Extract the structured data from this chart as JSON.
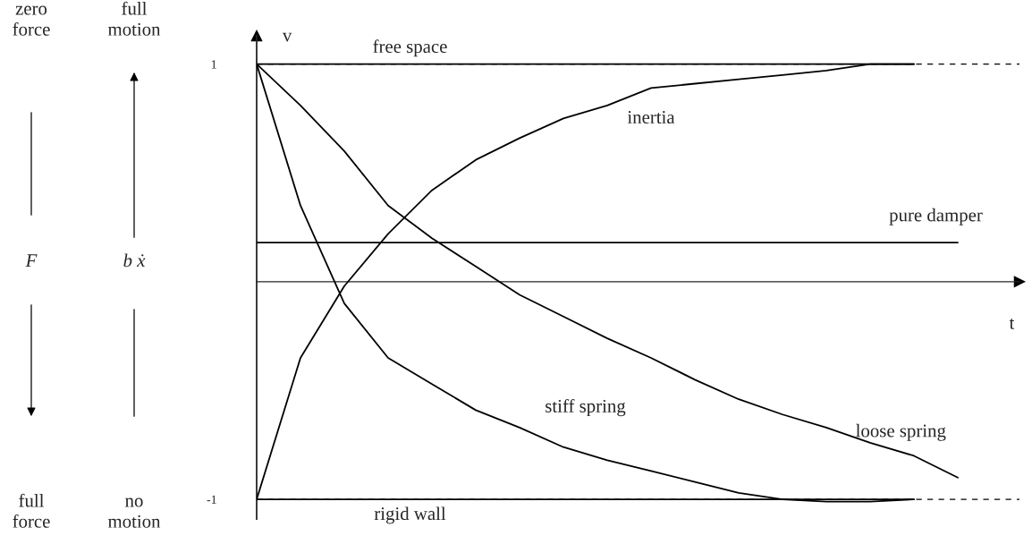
{
  "chart_data": {
    "type": "line",
    "xlabel": "t",
    "ylabel": "v",
    "categories": [
      null,
      null,
      null,
      null,
      null,
      null,
      null,
      null,
      null,
      null,
      null,
      null,
      null,
      null,
      null,
      null,
      null
    ],
    "series": [
      {
        "name": "free space",
        "color": "#000000",
        "values": [
          1,
          1,
          1,
          1,
          1,
          1,
          1,
          1,
          1,
          1,
          1,
          1,
          1,
          1,
          1,
          1,
          null
        ]
      },
      {
        "name": "rigid wall",
        "color": "#000000",
        "values": [
          -1,
          -1,
          -1,
          -1,
          -1,
          -1,
          -1,
          -1,
          -1,
          -1,
          -1,
          -1,
          -1,
          -1,
          -1,
          -1,
          null
        ]
      },
      {
        "name": "pure damper",
        "color": "#000000",
        "values": [
          0.18,
          0.18,
          0.18,
          0.18,
          0.18,
          0.18,
          0.18,
          0.18,
          0.18,
          0.18,
          0.18,
          0.18,
          0.18,
          0.18,
          0.18,
          0.18,
          0.18
        ]
      },
      {
        "name": "inertia",
        "color": "#000000",
        "values": [
          -1,
          -0.35,
          -0.02,
          0.22,
          0.42,
          0.56,
          0.66,
          0.75,
          0.81,
          0.89,
          0.91,
          0.93,
          0.95,
          0.97,
          1,
          1,
          null
        ]
      },
      {
        "name": "stiff spring",
        "color": "#000000",
        "values": [
          1,
          0.35,
          -0.1,
          -0.35,
          -0.47,
          -0.59,
          -0.67,
          -0.76,
          -0.82,
          -0.87,
          -0.92,
          -0.97,
          -1,
          -1.01,
          -1.01,
          -1,
          null
        ]
      },
      {
        "name": "loose spring",
        "color": "#000000",
        "values": [
          1,
          0.81,
          0.6,
          0.35,
          0.2,
          0.07,
          -0.06,
          -0.16,
          -0.26,
          -0.35,
          -0.45,
          -0.54,
          -0.61,
          -0.67,
          -0.74,
          -0.8,
          -0.9
        ]
      }
    ],
    "ylim": [
      -1.09,
      1.13
    ],
    "yticks": [
      1,
      -1
    ],
    "ref_lines": [
      {
        "axis": "y",
        "value": 1,
        "line_style": "dashed",
        "color": "#000000"
      },
      {
        "axis": "y",
        "value": -1,
        "line_style": "dashed",
        "color": "#000000"
      }
    ],
    "annotations": [
      "zero\nforce",
      "F",
      "full\nforce",
      "full\nmotion",
      "b ẋ",
      "no\nmotion"
    ],
    "legend": false,
    "grid": false,
    "marker": "none",
    "line_style": "solid"
  }
}
